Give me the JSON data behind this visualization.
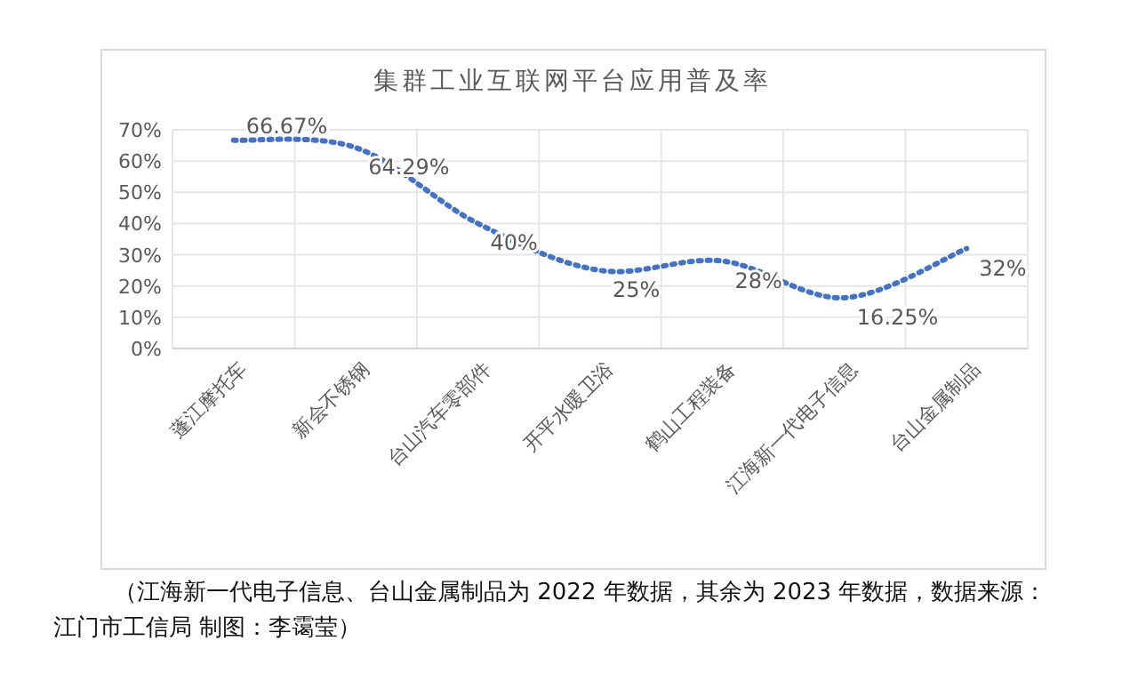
{
  "chart_data": {
    "type": "line",
    "title": "集群工业互联网平台应用普及率",
    "categories": [
      "蓬江摩托车",
      "新会不锈钢",
      "台山汽车零部件",
      "开平水暖卫浴",
      "鹤山工程装备",
      "江海新一代电子信息",
      "台山金属制品"
    ],
    "series": [
      {
        "color": "#4472c4",
        "values": [
          66.67,
          64.29,
          40,
          25,
          28,
          16.25,
          32
        ],
        "value_labels": [
          "66.67%",
          "64.29%",
          "40%",
          "25%",
          "28%",
          "16.25%",
          "32%"
        ]
      }
    ],
    "ylim": [
      0,
      70
    ],
    "yticks": [
      {
        "value": 0,
        "label": "0%"
      },
      {
        "value": 10,
        "label": "10%"
      },
      {
        "value": 20,
        "label": "20%"
      },
      {
        "value": 30,
        "label": "30%"
      },
      {
        "value": 40,
        "label": "40%"
      },
      {
        "value": 50,
        "label": "50%"
      },
      {
        "value": 60,
        "label": "60%"
      },
      {
        "value": 70,
        "label": "70%"
      }
    ],
    "grid": true,
    "line_style": "dotted",
    "marker": "none",
    "annotations": [
      "（江海新一代电子信息、台山金属制品为 2022 年数据，其余为 2023 年数据，数据来源：江门市工信局  制图：李霭莹）"
    ]
  }
}
